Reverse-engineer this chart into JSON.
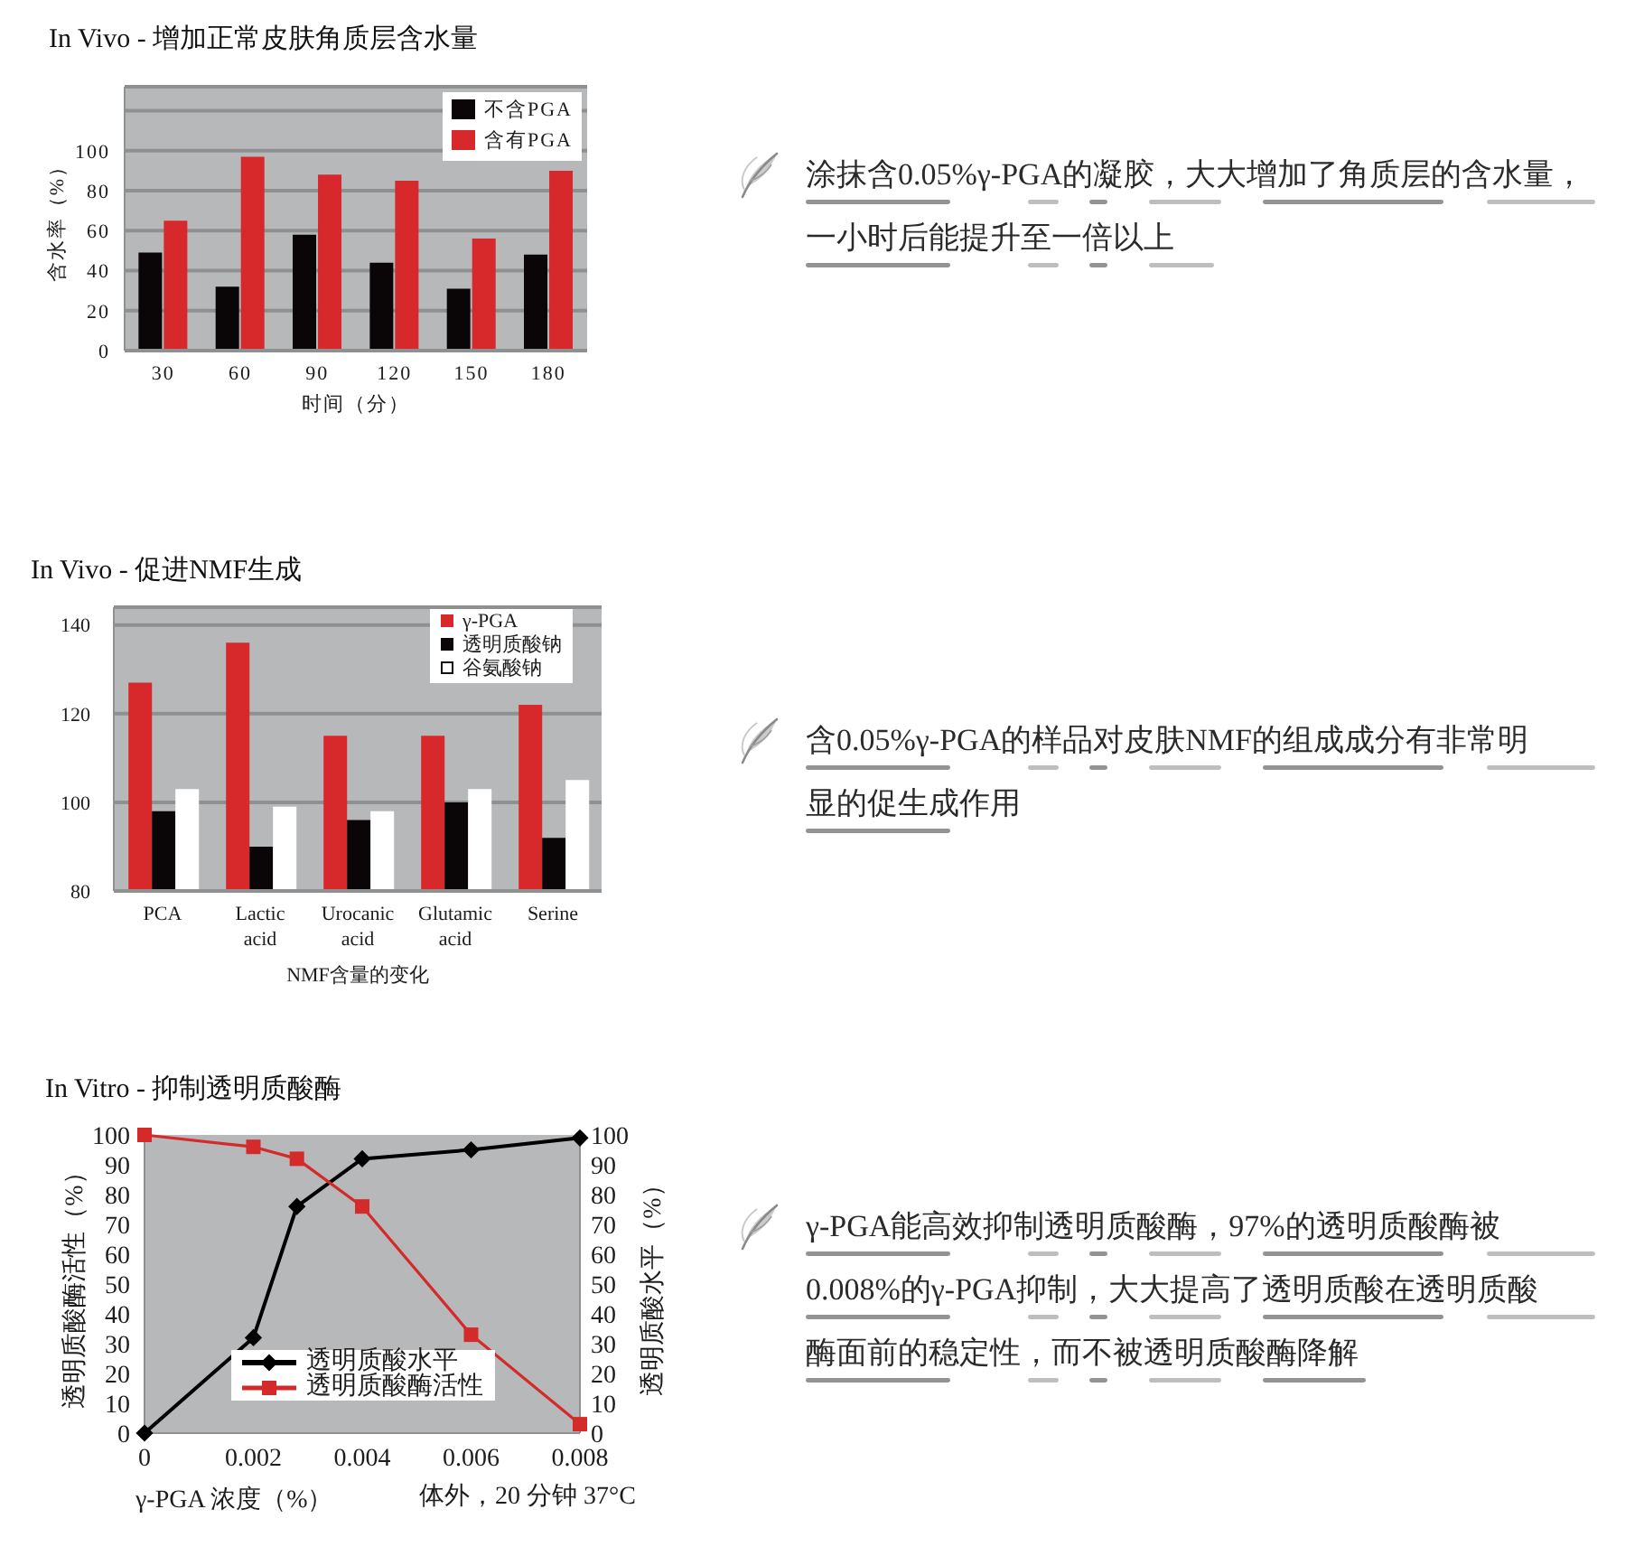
{
  "chart_data": [
    {
      "type": "bar",
      "title": "In Vivo - 增加正常皮肤角质层含水量",
      "xlabel": "时间（分）",
      "ylabel": "含水率（%）",
      "categories": [
        "30",
        "60",
        "90",
        "120",
        "150",
        "180"
      ],
      "series": [
        {
          "name": "不含PGA",
          "color": "#0a0607",
          "values": [
            49,
            32,
            58,
            44,
            31,
            48
          ]
        },
        {
          "name": "含有PGA",
          "color": "#d7282c",
          "values": [
            65,
            97,
            88,
            85,
            56,
            90
          ]
        }
      ],
      "ylim": [
        0,
        132
      ],
      "yticks": [
        0,
        20,
        40,
        60,
        80,
        100,
        {
          "value": 120,
          "label": null
        }
      ],
      "grid": "y",
      "legend": "top right"
    },
    {
      "type": "other",
      "annotations": [
        "涂抹含0.05%γ-PGA的凝胶，大大增加了角质层的含水量，一小时后能提升至一倍以上"
      ]
    },
    {
      "type": "bar",
      "title": "In Vivo - 促进NMF生成",
      "xlabel": "NMF含量的变化",
      "categories": [
        "PCA",
        "Lactic acid",
        "Urocanic acid",
        "Glutamic acid",
        "Serine"
      ],
      "series": [
        {
          "name": "γ-PGA",
          "color": "#d7282c",
          "values": [
            127,
            136,
            115,
            115,
            122
          ]
        },
        {
          "name": "透明质酸钠",
          "color": "#0a0607",
          "values": [
            98,
            90,
            96,
            100,
            92
          ]
        },
        {
          "name": "谷氨酸钠",
          "color": "#ffffff",
          "values": [
            103,
            99,
            98,
            103,
            105
          ]
        }
      ],
      "ylim": [
        80,
        144
      ],
      "yticks": [
        80,
        100,
        120,
        140
      ],
      "grid": "y",
      "legend": "top right"
    },
    {
      "type": "other",
      "annotations": [
        "含0.05%γ-PGA的样品对皮肤NMF的组成成分有非常明显的促生成作用"
      ]
    },
    {
      "type": "line",
      "title": "In Vitro - 抑制透明质酸酶",
      "xlabel": "γ-PGA 浓度（%）",
      "ylabel": "透明质酸酶活性（%）",
      "y2label": "透明质酸水平（%）",
      "x": [
        0,
        0.002,
        0.0028,
        0.004,
        0.006,
        0.008
      ],
      "series": [
        {
          "name": "透明质酸水平",
          "color": "#000000",
          "axis": "y2",
          "marker": "diamond",
          "values": [
            0,
            32,
            76,
            92,
            95,
            99
          ]
        },
        {
          "name": "透明质酸酶活性",
          "color": "#d42a2a",
          "marker": "square",
          "values": [
            100,
            96,
            92,
            76,
            33,
            3
          ]
        }
      ],
      "xlim": [
        0,
        0.008
      ],
      "xticks": [
        0,
        0.002,
        0.004,
        0.006,
        0.008
      ],
      "ylim": [
        0,
        100
      ],
      "yticks": [
        0,
        10,
        20,
        30,
        40,
        50,
        60,
        70,
        80,
        90,
        100
      ],
      "y2lim": [
        0,
        100
      ],
      "y2ticks": [
        0,
        10,
        20,
        30,
        40,
        50,
        60,
        70,
        80,
        90,
        100
      ],
      "legend": "bottom",
      "annotations": [
        "体外，20 分钟 37°C"
      ]
    },
    {
      "type": "other",
      "annotations": [
        "γ-PGA能高效抑制透明质酸酶，97%的透明质酸酶被0.008%的γ-PGA抑制，大大提高了透明质酸在透明质酸酶面前的稳定性，而不被透明质酸酶降解"
      ]
    }
  ]
}
